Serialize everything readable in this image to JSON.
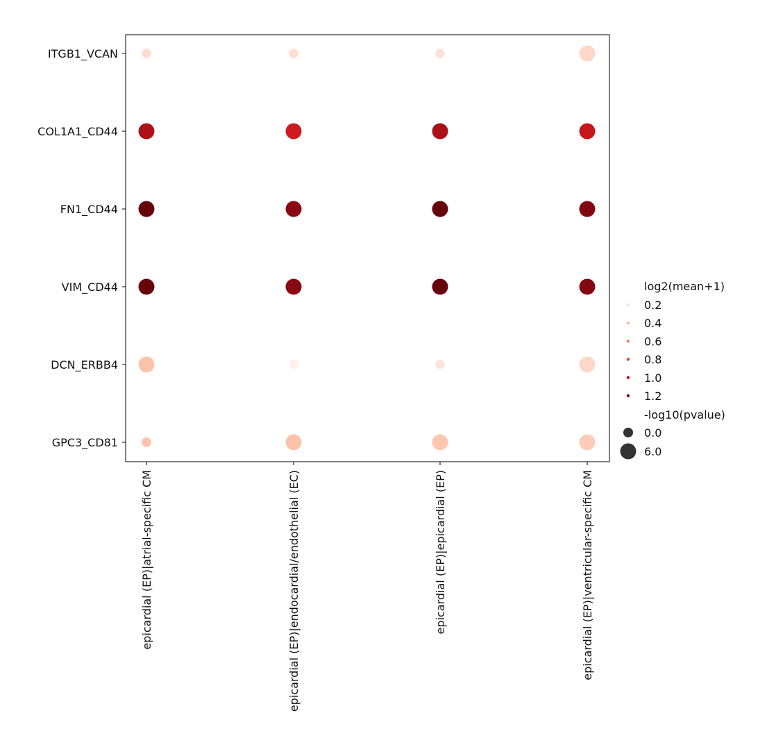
{
  "chart_data": {
    "type": "scatter",
    "title": "",
    "xlabel": "",
    "ylabel": "",
    "categories": [
      "epicardial (EP)|atrial-specific CM",
      "epicardial (EP)|endocardial/endothelial (EC)",
      "epicardial (EP)|epicardial (EP)",
      "epicardial (EP)|ventricular-specific CM"
    ],
    "rows": [
      "ITGB1_VCAN",
      "COL1A1_CD44",
      "FN1_CD44",
      "VIM_CD44",
      "DCN_ERBB4",
      "GPC3_CD81"
    ],
    "color_variable": "log2(mean+1)",
    "size_variable": "-log10(pvalue)",
    "color_scale": [
      "#fff5f0",
      "#fcbba1",
      "#fb6a4a",
      "#cb181d",
      "#67000d"
    ],
    "color_range": [
      0.1,
      1.25
    ],
    "size_range": [
      0,
      6
    ],
    "points": [
      {
        "row": "ITGB1_VCAN",
        "col": "epicardial (EP)|atrial-specific CM",
        "mean": 0.22,
        "pvalue": 1.5
      },
      {
        "row": "ITGB1_VCAN",
        "col": "epicardial (EP)|endocardial/endothelial (EC)",
        "mean": 0.22,
        "pvalue": 1.5
      },
      {
        "row": "ITGB1_VCAN",
        "col": "epicardial (EP)|epicardial (EP)",
        "mean": 0.2,
        "pvalue": 1.5
      },
      {
        "row": "ITGB1_VCAN",
        "col": "epicardial (EP)|ventricular-specific CM",
        "mean": 0.25,
        "pvalue": 6.0
      },
      {
        "row": "COL1A1_CD44",
        "col": "epicardial (EP)|atrial-specific CM",
        "mean": 1.05,
        "pvalue": 6.0
      },
      {
        "row": "COL1A1_CD44",
        "col": "epicardial (EP)|endocardial/endothelial (EC)",
        "mean": 0.95,
        "pvalue": 6.0
      },
      {
        "row": "COL1A1_CD44",
        "col": "epicardial (EP)|epicardial (EP)",
        "mean": 1.05,
        "pvalue": 6.0
      },
      {
        "row": "COL1A1_CD44",
        "col": "epicardial (EP)|ventricular-specific CM",
        "mean": 0.98,
        "pvalue": 6.0
      },
      {
        "row": "FN1_CD44",
        "col": "epicardial (EP)|atrial-specific CM",
        "mean": 1.25,
        "pvalue": 6.0
      },
      {
        "row": "FN1_CD44",
        "col": "epicardial (EP)|endocardial/endothelial (EC)",
        "mean": 1.15,
        "pvalue": 6.0
      },
      {
        "row": "FN1_CD44",
        "col": "epicardial (EP)|epicardial (EP)",
        "mean": 1.25,
        "pvalue": 6.0
      },
      {
        "row": "FN1_CD44",
        "col": "epicardial (EP)|ventricular-specific CM",
        "mean": 1.17,
        "pvalue": 6.0
      },
      {
        "row": "VIM_CD44",
        "col": "epicardial (EP)|atrial-specific CM",
        "mean": 1.25,
        "pvalue": 6.0
      },
      {
        "row": "VIM_CD44",
        "col": "epicardial (EP)|endocardial/endothelial (EC)",
        "mean": 1.15,
        "pvalue": 6.0
      },
      {
        "row": "VIM_CD44",
        "col": "epicardial (EP)|epicardial (EP)",
        "mean": 1.25,
        "pvalue": 6.0
      },
      {
        "row": "VIM_CD44",
        "col": "epicardial (EP)|ventricular-specific CM",
        "mean": 1.17,
        "pvalue": 6.0
      },
      {
        "row": "DCN_ERBB4",
        "col": "epicardial (EP)|atrial-specific CM",
        "mean": 0.35,
        "pvalue": 6.0
      },
      {
        "row": "DCN_ERBB4",
        "col": "epicardial (EP)|endocardial/endothelial (EC)",
        "mean": 0.12,
        "pvalue": 1.5
      },
      {
        "row": "DCN_ERBB4",
        "col": "epicardial (EP)|epicardial (EP)",
        "mean": 0.18,
        "pvalue": 1.5
      },
      {
        "row": "DCN_ERBB4",
        "col": "epicardial (EP)|ventricular-specific CM",
        "mean": 0.25,
        "pvalue": 6.0
      },
      {
        "row": "GPC3_CD81",
        "col": "epicardial (EP)|atrial-specific CM",
        "mean": 0.35,
        "pvalue": 1.8
      },
      {
        "row": "GPC3_CD81",
        "col": "epicardial (EP)|endocardial/endothelial (EC)",
        "mean": 0.35,
        "pvalue": 6.0
      },
      {
        "row": "GPC3_CD81",
        "col": "epicardial (EP)|epicardial (EP)",
        "mean": 0.33,
        "pvalue": 6.0
      },
      {
        "row": "GPC3_CD81",
        "col": "epicardial (EP)|ventricular-specific CM",
        "mean": 0.3,
        "pvalue": 6.0
      }
    ],
    "legend": {
      "placement": "right",
      "color_title": "log2(mean+1)",
      "color_items": [
        {
          "label": "0.2",
          "value": 0.2
        },
        {
          "label": "0.4",
          "value": 0.4
        },
        {
          "label": "0.6",
          "value": 0.6
        },
        {
          "label": "0.8",
          "value": 0.8
        },
        {
          "label": "1.0",
          "value": 1.0
        },
        {
          "label": "1.2",
          "value": 1.2
        }
      ],
      "size_title": "-log10(pvalue)",
      "size_items": [
        {
          "label": "0.0",
          "value": 0.0
        },
        {
          "label": "6.0",
          "value": 6.0
        }
      ]
    },
    "grid": false
  }
}
